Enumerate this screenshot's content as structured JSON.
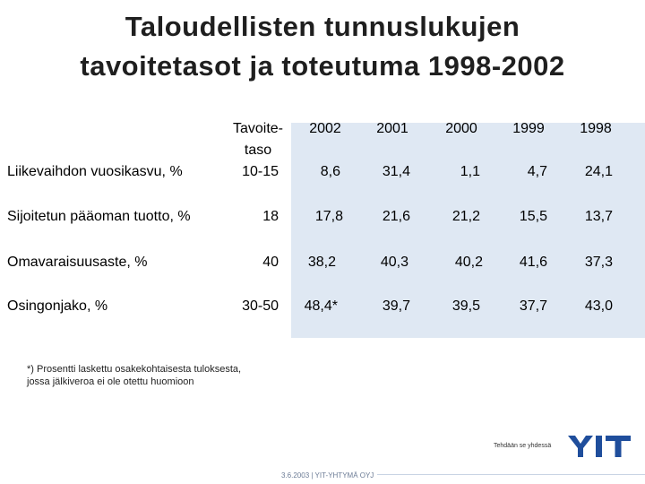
{
  "slide": {
    "title_line1": "Taloudellisten tunnuslukujen",
    "title_line2": "tavoitetasot ja toteutuma 1998-2002"
  },
  "table": {
    "header": {
      "target_line1": "Tavoite-",
      "target_line2": "taso",
      "years": [
        "2002",
        "2001",
        "2000",
        "1999",
        "1998"
      ]
    },
    "rows": [
      {
        "label": "Liikevaihdon vuosikasvu, %",
        "target": "10-15",
        "values": [
          "8,6",
          "31,4",
          "1,1",
          "4,7",
          "24,1"
        ]
      },
      {
        "label": "Sijoitetun pääoman tuotto, %",
        "target": "18",
        "values": [
          "17,8",
          "21,6",
          "21,2",
          "15,5",
          "13,7"
        ]
      },
      {
        "label": "Omavaraisuusaste, %",
        "target": "40",
        "values": [
          "38,2",
          "40,3",
          "40,2",
          "41,6",
          "37,3"
        ]
      },
      {
        "label": "Osingonjako, %",
        "target": "30-50",
        "values": [
          "48,4*",
          "39,7",
          "39,5",
          "37,7",
          "43,0"
        ]
      }
    ]
  },
  "footnote": {
    "line1": "*) Prosentti laskettu osakekohtaisesta tuloksesta,",
    "line2": "jossa jälkiveroa ei ole otettu huomioon"
  },
  "brand": {
    "tagline": "Tehdään se yhdessä",
    "logo_text": "YIT",
    "color": "#1f4e9c"
  },
  "footer": {
    "text": "3.6.2003   |   YIT-YHTYMÄ OYJ"
  },
  "colors": {
    "band_blue": "#dfe8f3"
  }
}
